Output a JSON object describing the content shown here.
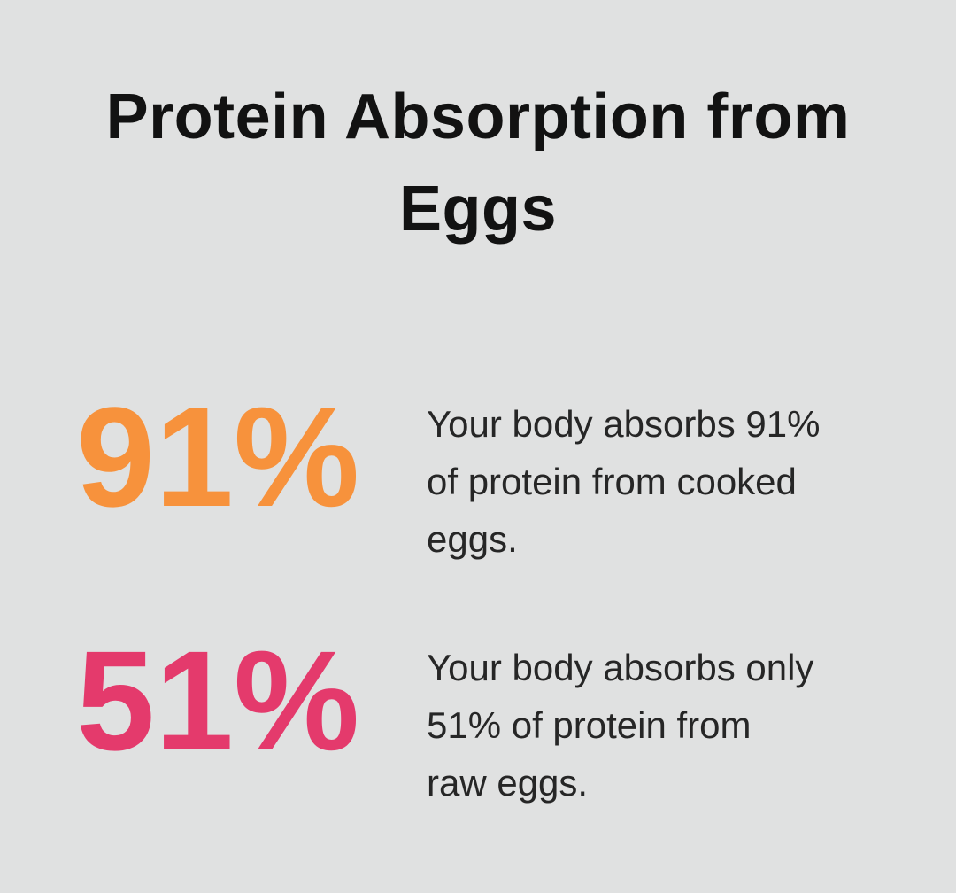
{
  "page": {
    "background_color": "#e0e1e1",
    "title_color": "#121212",
    "text_color": "#262626",
    "title": "Protein Absorption from Eggs"
  },
  "stats": [
    {
      "value": "91%",
      "color": "#f7923c",
      "description": "Your body absorbs 91%\nof protein from cooked\neggs."
    },
    {
      "value": "51%",
      "color": "#e43a6c",
      "description": "Your body absorbs only\n51% of protein from\nraw eggs."
    }
  ],
  "chart_data": {
    "type": "table",
    "title": "Protein Absorption from Eggs",
    "categories": [
      "Cooked eggs",
      "Raw eggs"
    ],
    "values": [
      91,
      51
    ],
    "unit": "%",
    "series_colors": [
      "#f7923c",
      "#e43a6c"
    ],
    "annotations": [
      "Your body absorbs 91% of protein from cooked eggs.",
      "Your body absorbs only 51% of protein from raw eggs."
    ]
  }
}
